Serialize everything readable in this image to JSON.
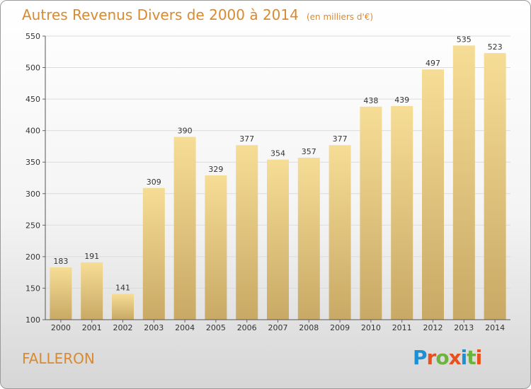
{
  "header": {
    "title": "Autres Revenus Divers de 2000 à 2014",
    "unit": "(en milliers d'€)"
  },
  "footer": {
    "town": "FALLERON",
    "logo_text": "Proxiti"
  },
  "colors": {
    "title": "#d98a2f",
    "bar_top": "#f6dd96",
    "bar_bottom": "#c8a965",
    "logo_letters": [
      "#1d8fd6",
      "#e8501e",
      "#6db33f",
      "#e8501e",
      "#1d8fd6",
      "#6db33f",
      "#e8501e"
    ]
  },
  "chart_data": {
    "type": "bar",
    "title": "Autres Revenus Divers de 2000 à 2014",
    "subtitle": "(en milliers d'€)",
    "categories": [
      "2000",
      "2001",
      "2002",
      "2003",
      "2004",
      "2005",
      "2006",
      "2007",
      "2008",
      "2009",
      "2010",
      "2011",
      "2012",
      "2013",
      "2014"
    ],
    "values": [
      183,
      191,
      141,
      309,
      390,
      329,
      377,
      354,
      357,
      377,
      438,
      439,
      497,
      535,
      523
    ],
    "ylim": [
      100,
      550
    ],
    "yticks": [
      100,
      150,
      200,
      250,
      300,
      350,
      400,
      450,
      500,
      550
    ],
    "grid": true,
    "xlabel": "",
    "ylabel": ""
  }
}
